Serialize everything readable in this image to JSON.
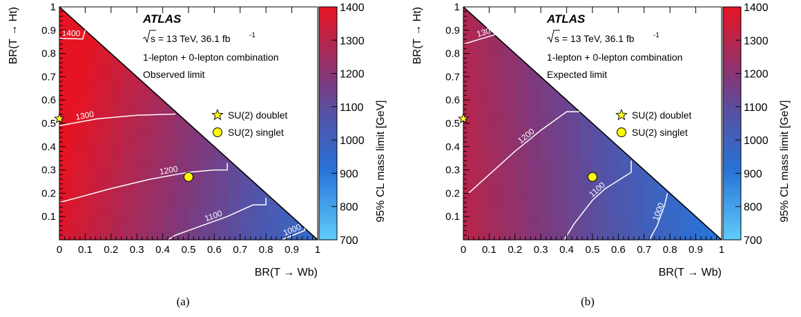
{
  "chart_data": [
    {
      "type": "heatmap",
      "panel_label": "(a)",
      "experiment": "ATLAS",
      "energy_label": "s = 13 TeV, 36.1 fb",
      "lumi_exponent": "-1",
      "info_line": "1-lepton + 0-lepton combination",
      "limit_label": "Observed limit",
      "xlabel": "BR(T → Wb)",
      "ylabel": "BR(T → Ht)",
      "zlabel": "95% CL mass limit [GeV]",
      "xlim": [
        0,
        1
      ],
      "ylim": [
        0,
        1
      ],
      "zlim": [
        700,
        1400
      ],
      "x_ticks": [
        "0",
        "0.1",
        "0.2",
        "0.3",
        "0.4",
        "0.5",
        "0.6",
        "0.7",
        "0.8",
        "0.9",
        "1"
      ],
      "y_ticks": [
        "0.1",
        "0.2",
        "0.3",
        "0.4",
        "0.5",
        "0.6",
        "0.7",
        "0.8",
        "0.9",
        "1"
      ],
      "z_ticks": [
        "700",
        "800",
        "900",
        "1000",
        "1100",
        "1200",
        "1300",
        "1400"
      ],
      "mass_model": {
        "base": 1380,
        "per_wb": -430,
        "per_ht": 80
      },
      "contours": [
        {
          "label": "1400",
          "points": [
            [
              0.0,
              0.865
            ],
            [
              0.09,
              0.862
            ],
            [
              0.1,
              0.9
            ]
          ]
        },
        {
          "label": "1300",
          "points": [
            [
              0.0,
              0.49
            ],
            [
              0.05,
              0.5
            ],
            [
              0.15,
              0.52
            ],
            [
              0.3,
              0.535
            ],
            [
              0.45,
              0.54
            ]
          ]
        },
        {
          "label": "1200",
          "points": [
            [
              0.0,
              0.16
            ],
            [
              0.1,
              0.19
            ],
            [
              0.2,
              0.22
            ],
            [
              0.35,
              0.26
            ],
            [
              0.5,
              0.29
            ],
            [
              0.6,
              0.3
            ],
            [
              0.65,
              0.3
            ],
            [
              0.65,
              0.33
            ]
          ]
        },
        {
          "label": "1100",
          "points": [
            [
              0.42,
              0.0
            ],
            [
              0.45,
              0.02
            ],
            [
              0.55,
              0.06
            ],
            [
              0.65,
              0.1
            ],
            [
              0.75,
              0.15
            ],
            [
              0.8,
              0.15
            ],
            [
              0.8,
              0.18
            ]
          ]
        },
        {
          "label": "1000",
          "points": [
            [
              0.86,
              0.0
            ],
            [
              0.95,
              0.04
            ],
            [
              0.95,
              0.05
            ]
          ]
        }
      ],
      "legend": [
        {
          "marker": "star",
          "label": "SU(2) doublet"
        },
        {
          "marker": "circle",
          "label": "SU(2) singlet"
        }
      ],
      "points": [
        {
          "name": "SU(2) doublet",
          "marker": "star",
          "x": 0.0,
          "y": 0.52
        },
        {
          "name": "SU(2) singlet",
          "marker": "circle",
          "x": 0.5,
          "y": 0.27
        }
      ]
    },
    {
      "type": "heatmap",
      "panel_label": "(b)",
      "experiment": "ATLAS",
      "energy_label": "s = 13 TeV, 36.1 fb",
      "lumi_exponent": "-1",
      "info_line": "1-lepton + 0-lepton combination",
      "limit_label": "Expected limit",
      "xlabel": "BR(T → Wb)",
      "ylabel": "BR(T → Ht)",
      "zlabel": "95% CL mass limit [GeV]",
      "xlim": [
        0,
        1
      ],
      "ylim": [
        0,
        1
      ],
      "zlim": [
        700,
        1400
      ],
      "x_ticks": [
        "0",
        "0.1",
        "0.2",
        "0.3",
        "0.4",
        "0.5",
        "0.6",
        "0.7",
        "0.8",
        "0.9",
        "1"
      ],
      "y_ticks": [
        "0.1",
        "0.2",
        "0.3",
        "0.4",
        "0.5",
        "0.6",
        "0.7",
        "0.8",
        "0.9",
        "1"
      ],
      "z_ticks": [
        "700",
        "800",
        "900",
        "1000",
        "1100",
        "1200",
        "1300",
        "1400"
      ],
      "mass_model": {
        "base": 1310,
        "per_wb": -420,
        "per_ht": -20
      },
      "contours": [
        {
          "label": "1300",
          "points": [
            [
              0.0,
              0.84
            ],
            [
              0.06,
              0.86
            ],
            [
              0.12,
              0.88
            ],
            [
              0.12,
              0.92
            ]
          ]
        },
        {
          "label": "1200",
          "points": [
            [
              0.02,
              0.2
            ],
            [
              0.1,
              0.28
            ],
            [
              0.2,
              0.38
            ],
            [
              0.3,
              0.47
            ],
            [
              0.4,
              0.55
            ],
            [
              0.45,
              0.55
            ]
          ]
        },
        {
          "label": "1100",
          "points": [
            [
              0.39,
              0.0
            ],
            [
              0.43,
              0.07
            ],
            [
              0.5,
              0.17
            ],
            [
              0.55,
              0.22
            ],
            [
              0.65,
              0.29
            ],
            [
              0.65,
              0.34
            ]
          ]
        },
        {
          "label": "1000",
          "points": [
            [
              0.72,
              0.0
            ],
            [
              0.75,
              0.06
            ],
            [
              0.78,
              0.15
            ],
            [
              0.79,
              0.2
            ]
          ]
        }
      ],
      "legend": [
        {
          "marker": "star",
          "label": "SU(2) doublet"
        },
        {
          "marker": "circle",
          "label": "SU(2) singlet"
        }
      ],
      "points": [
        {
          "name": "SU(2) doublet",
          "marker": "star",
          "x": 0.0,
          "y": 0.52
        },
        {
          "name": "SU(2) singlet",
          "marker": "circle",
          "x": 0.5,
          "y": 0.27
        }
      ]
    }
  ]
}
